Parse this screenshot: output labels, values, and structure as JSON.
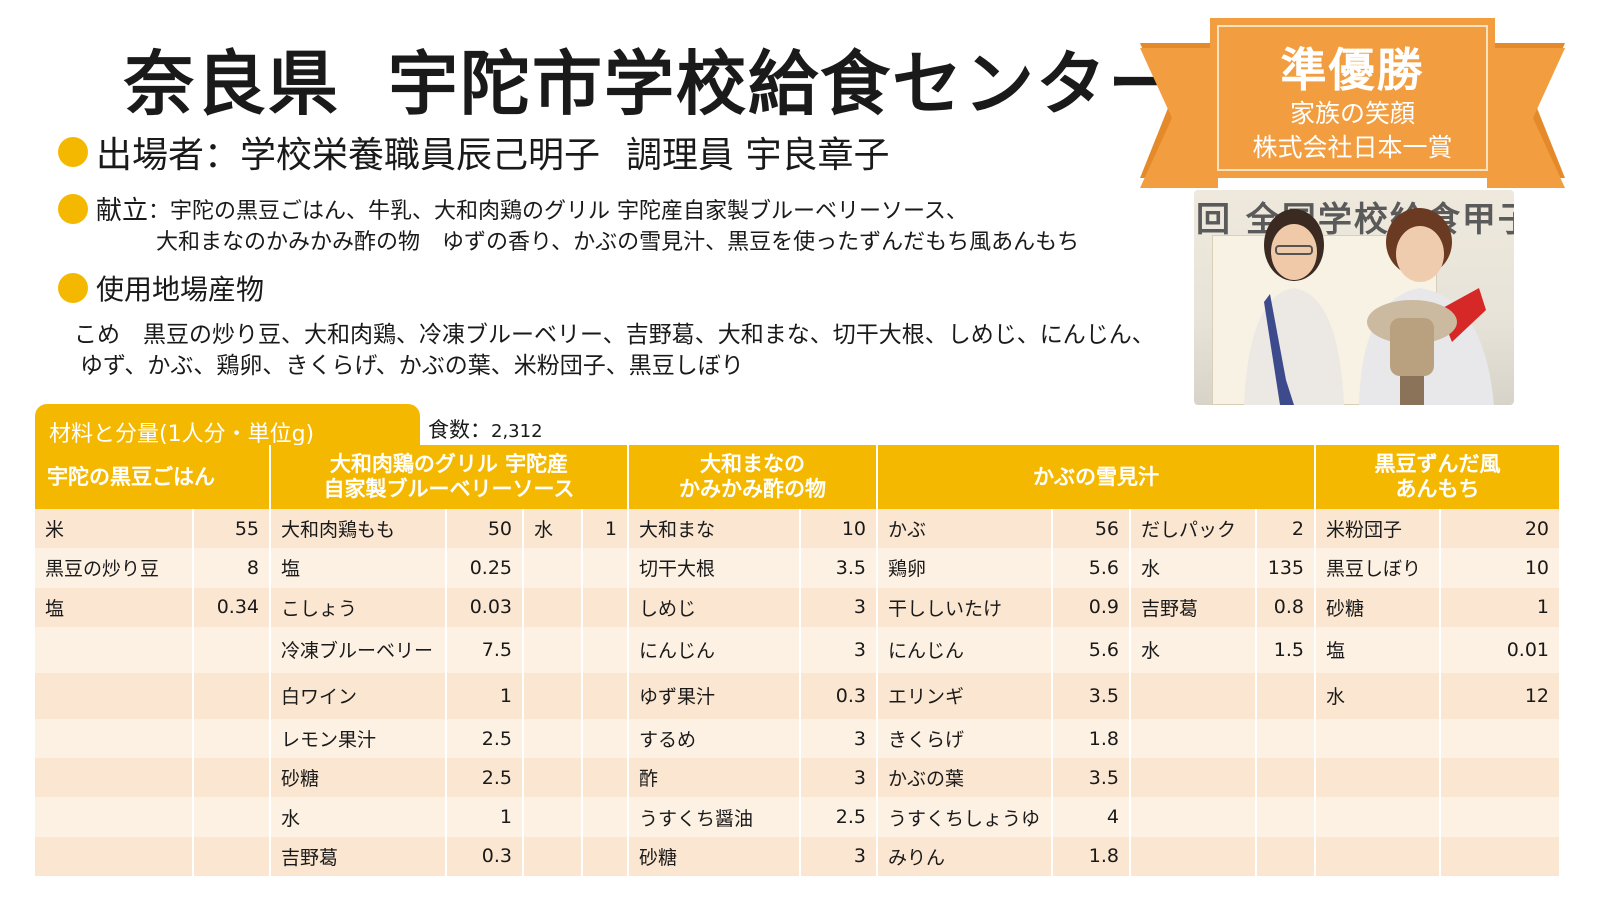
{
  "title": {
    "prefecture": "奈良県",
    "center": "宇陀市学校給食センター"
  },
  "participants": {
    "label": "出場者：",
    "text1": "学校栄養職員辰己明子",
    "text2": "調理員 宇良章子"
  },
  "menu": {
    "label": "献立",
    "line1": "：宇陀の黒豆ごはん、牛乳、大和肉鶏のグリル 宇陀産自家製ブルーベリーソース、",
    "line2": "大和まなのかみかみ酢の物　ゆずの香り、かぶの雪見汁、黒豆を使ったずんだもち風あんもち"
  },
  "local_produce": {
    "label": "使用地場産物",
    "line1": "こめ　黒豆の炒り豆、大和肉鶏、冷凍ブルーベリー、吉野葛、大和まな、切干大根、しめじ、にんじん、",
    "line2": "ゆず、かぶ、鶏卵、きくらげ、かぶの葉、米粉団子、黒豆しぼり"
  },
  "award": {
    "title": "準優勝",
    "line1": "家族の笑顔",
    "line2": "株式会社日本一賞"
  },
  "photo": {
    "background_text": "回 全国学校給食甲子"
  },
  "table": {
    "tab_label": "材料と分量(1人分・単位g)",
    "servings_label": "食数：",
    "servings_value": "2,312",
    "headers": [
      "宇陀の黒豆ごはん",
      "大和肉鶏のグリル 宇陀産\n自家製ブルーベリーソース",
      "大和まなの\nかみかみ酢の物",
      "かぶの雪見汁",
      "黒豆ずんだ風\nあんもち"
    ],
    "rows": [
      [
        "米",
        "55",
        "大和肉鶏もも",
        "50",
        "水",
        "1",
        "大和まな",
        "10",
        "かぶ",
        "56",
        "だしパック",
        "2",
        "米粉団子",
        "20"
      ],
      [
        "黒豆の炒り豆",
        "8",
        "塩",
        "0.25",
        "",
        "",
        "切干大根",
        "3.5",
        "鶏卵",
        "5.6",
        "水",
        "135",
        "黒豆しぼり",
        "10"
      ],
      [
        "塩",
        "0.34",
        "こしょう",
        "0.03",
        "",
        "",
        "しめじ",
        "3",
        "干ししいたけ",
        "0.9",
        "吉野葛",
        "0.8",
        "砂糖",
        "1"
      ],
      [
        "",
        "",
        "冷凍ブルーベリー",
        "7.5",
        "",
        "",
        "にんじん",
        "3",
        "にんじん",
        "5.6",
        "水",
        "1.5",
        "塩",
        "0.01"
      ],
      [
        "",
        "",
        "白ワイン",
        "1",
        "",
        "",
        "ゆず果汁",
        "0.3",
        "エリンギ",
        "3.5",
        "",
        "",
        "水",
        "12"
      ],
      [
        "",
        "",
        "レモン果汁",
        "2.5",
        "",
        "",
        "するめ",
        "3",
        "きくらげ",
        "1.8",
        "",
        "",
        "",
        ""
      ],
      [
        "",
        "",
        "砂糖",
        "2.5",
        "",
        "",
        "酢",
        "3",
        "かぶの葉",
        "3.5",
        "",
        "",
        "",
        ""
      ],
      [
        "",
        "",
        "水",
        "1",
        "",
        "",
        "うすくち醤油",
        "2.5",
        "うすくちしょうゆ",
        "4",
        "",
        "",
        "",
        ""
      ],
      [
        "",
        "",
        "吉野葛",
        "0.3",
        "",
        "",
        "砂糖",
        "3",
        "みりん",
        "1.8",
        "",
        "",
        "",
        ""
      ]
    ]
  },
  "colors": {
    "accent": "#f5b800",
    "banner": "#f29d3f",
    "row_odd": "#fbe7d1",
    "row_even": "#fdf1e4"
  }
}
